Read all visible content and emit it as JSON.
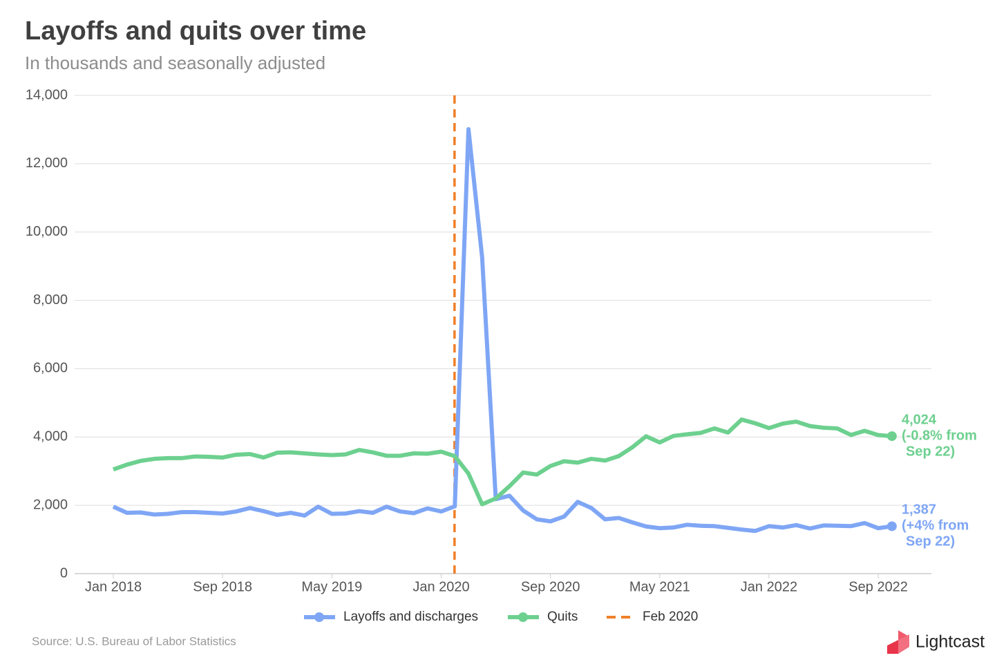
{
  "chart_data": {
    "type": "line",
    "title": "Layoffs and quits over time",
    "subtitle": "In thousands and seasonally adjusted",
    "categories": [
      "Jan 2018",
      null,
      null,
      null,
      null,
      null,
      null,
      null,
      "Sep 2018",
      null,
      null,
      null,
      null,
      null,
      null,
      null,
      "May 2019",
      null,
      null,
      null,
      null,
      null,
      null,
      null,
      "Jan 2020",
      null,
      null,
      null,
      null,
      null,
      null,
      null,
      "Sep 2020",
      null,
      null,
      null,
      null,
      null,
      null,
      null,
      "May 2021",
      null,
      null,
      null,
      null,
      null,
      null,
      null,
      "Jan 2022",
      null,
      null,
      null,
      null,
      null,
      null,
      null,
      "Sep 2022",
      null
    ],
    "series": [
      {
        "name": "Layoffs and discharges",
        "color": "#7fa6f5",
        "values": [
          1960,
          1780,
          1790,
          1730,
          1750,
          1800,
          1800,
          1780,
          1760,
          1820,
          1920,
          1830,
          1720,
          1780,
          1700,
          1960,
          1750,
          1760,
          1830,
          1780,
          1960,
          1820,
          1770,
          1910,
          1820,
          1970,
          13010,
          9260,
          2180,
          2280,
          1850,
          1590,
          1530,
          1670,
          2100,
          1920,
          1590,
          1630,
          1500,
          1380,
          1330,
          1350,
          1430,
          1400,
          1390,
          1340,
          1290,
          1250,
          1390,
          1350,
          1420,
          1320,
          1410,
          1400,
          1390,
          1480,
          1330,
          1387
        ],
        "end_label": [
          "1,387",
          "(+4% from",
          "Sep 22)"
        ]
      },
      {
        "name": "Quits",
        "color": "#6dd08f",
        "values": [
          3050,
          3190,
          3300,
          3360,
          3380,
          3380,
          3430,
          3420,
          3400,
          3480,
          3500,
          3400,
          3540,
          3550,
          3520,
          3490,
          3470,
          3490,
          3620,
          3550,
          3450,
          3450,
          3520,
          3510,
          3570,
          3440,
          2930,
          2030,
          2200,
          2560,
          2960,
          2900,
          3150,
          3290,
          3250,
          3360,
          3310,
          3440,
          3700,
          4020,
          3840,
          4030,
          4080,
          4120,
          4250,
          4130,
          4510,
          4400,
          4260,
          4390,
          4450,
          4320,
          4270,
          4250,
          4060,
          4180,
          4056,
          4024
        ],
        "end_label": [
          "4,024",
          "(-0.8% from",
          "Sep 22)"
        ]
      }
    ],
    "reference_line": {
      "name": "Feb 2020",
      "x": 25,
      "color": "#f07f28"
    },
    "ylim": [
      0,
      14000
    ],
    "yticks": [
      0,
      {
        "value": 2000,
        "label": "2,000"
      },
      {
        "value": 4000,
        "label": "4,000"
      },
      {
        "value": 6000,
        "label": "6,000"
      },
      {
        "value": 8000,
        "label": "8,000"
      },
      {
        "value": 10000,
        "label": "10,000"
      },
      {
        "value": 12000,
        "label": "12,000"
      },
      {
        "value": 14000,
        "label": "14,000"
      }
    ],
    "grid": true,
    "legend": "bottom",
    "source": "Source:  U.S. Bureau of Labor Statistics",
    "logo": "Lightcast"
  }
}
